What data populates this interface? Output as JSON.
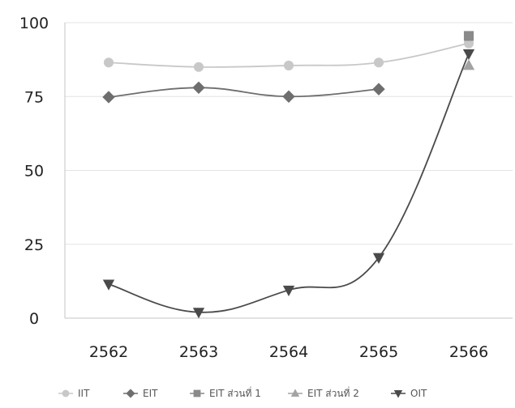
{
  "chart_data": {
    "type": "line",
    "title": "",
    "xlabel": "",
    "ylabel": "",
    "categories": [
      "2562",
      "2563",
      "2564",
      "2565",
      "2566"
    ],
    "ylim": [
      0,
      100
    ],
    "yticks": [
      0,
      25,
      50,
      75,
      100
    ],
    "grid": true,
    "legend_position": "bottom",
    "series": [
      {
        "name": "IIT",
        "values": [
          86.5,
          85,
          85.5,
          86.5,
          93
        ],
        "color": "#c8c8c8",
        "marker": "circle",
        "smooth": true
      },
      {
        "name": "EIT",
        "values": [
          74.8,
          78,
          75,
          77.5,
          null
        ],
        "color": "#6e6e6e",
        "marker": "diamond",
        "smooth": true
      },
      {
        "name": "EIT ส่วนที่ 1",
        "values": [
          null,
          null,
          null,
          null,
          95.5
        ],
        "color": "#8a8a8a",
        "marker": "square",
        "smooth": false
      },
      {
        "name": "EIT ส่วนที่ 2",
        "values": [
          null,
          null,
          null,
          null,
          85.5
        ],
        "color": "#a3a3a3",
        "marker": "triangle",
        "smooth": false
      },
      {
        "name": "OIT",
        "values": [
          11.5,
          2,
          9.5,
          20.5,
          89.5
        ],
        "color": "#4a4a4a",
        "marker": "triangle-down",
        "smooth": true
      }
    ]
  }
}
